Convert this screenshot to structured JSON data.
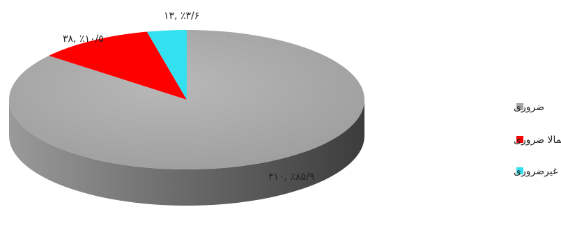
{
  "chart_data": {
    "type": "pie",
    "title": "",
    "categories": [
      "ضروری",
      "احتمالا ضروری",
      "غیرضروری"
    ],
    "values": [
      310,
      38,
      13
    ],
    "percentages": [
      85.9,
      10.5,
      3.6
    ],
    "data_labels": [
      "۳۱۰, ٪۸۵/۹",
      "۳۸, ٪۱۰/۵",
      "۱۳, ٪۳/۶"
    ],
    "colors": [
      "#a6a6a6",
      "#ff0000",
      "#33e0f0"
    ],
    "legend_position": "right",
    "style": "3d"
  }
}
